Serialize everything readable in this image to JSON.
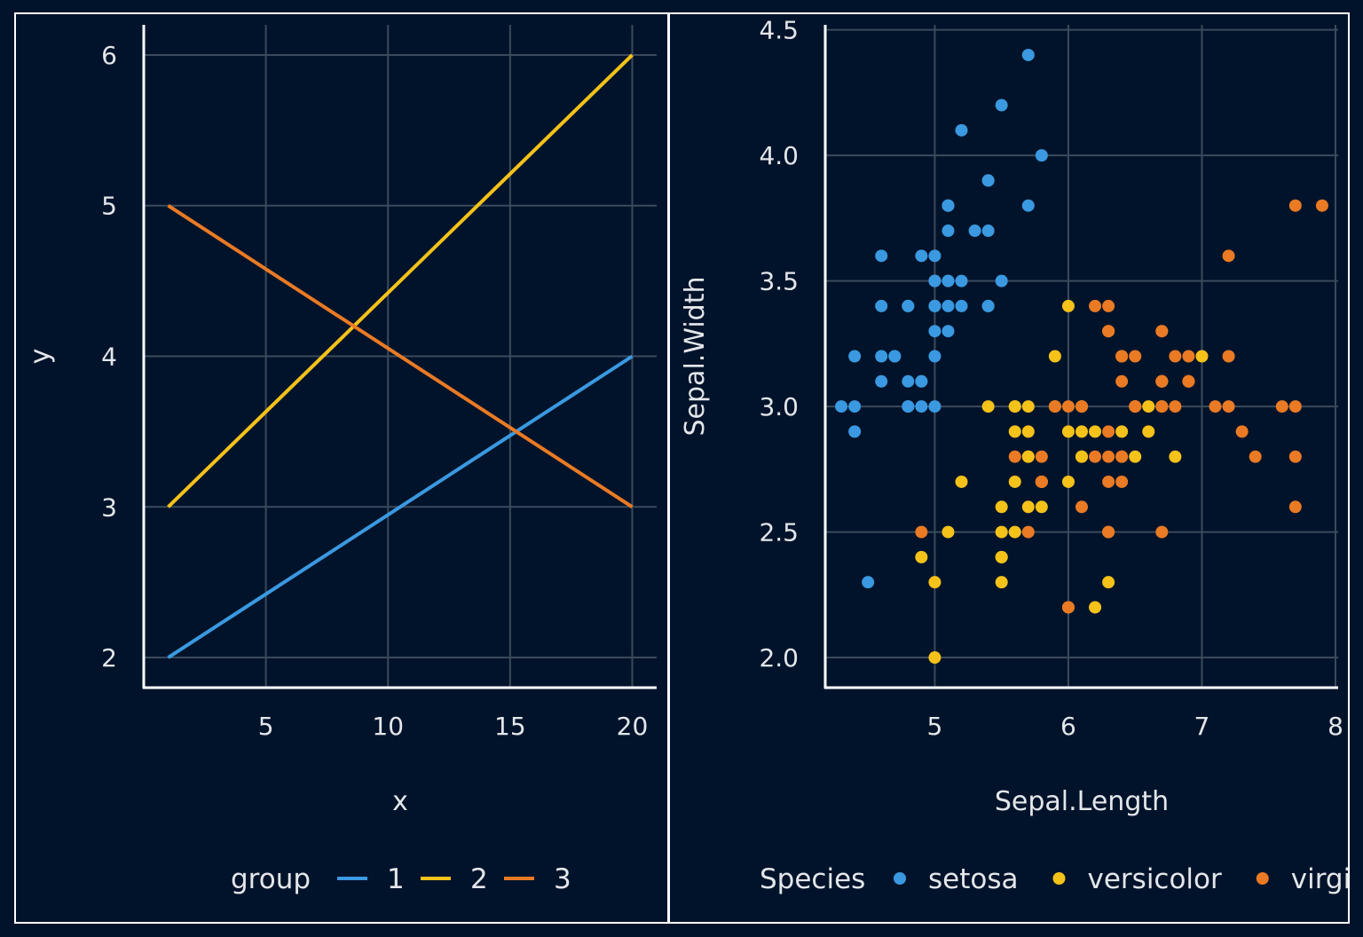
{
  "colors": {
    "background": "#01132a",
    "grid": "#3b4a5c",
    "axis": "#ffffff",
    "text": "#e3e6ea",
    "blue": "#3a99e0",
    "yellow": "#f5c21a",
    "orange": "#ea7a24"
  },
  "chart_data": [
    {
      "type": "line",
      "xlabel": "x",
      "ylabel": "y",
      "xlim": [
        0,
        21
      ],
      "ylim": [
        1.8,
        6.2
      ],
      "xticks": [
        5,
        10,
        15,
        20
      ],
      "yticks": [
        2,
        3,
        4,
        5,
        6
      ],
      "grid": true,
      "legend": {
        "title": "group",
        "position": "bottom"
      },
      "series": [
        {
          "name": "1",
          "color": "#3a99e0",
          "x": [
            1,
            20
          ],
          "y": [
            2,
            4
          ]
        },
        {
          "name": "2",
          "color": "#f5c21a",
          "x": [
            1,
            20
          ],
          "y": [
            3,
            6
          ]
        },
        {
          "name": "3",
          "color": "#ea7a24",
          "x": [
            1,
            20
          ],
          "y": [
            5,
            3
          ]
        }
      ]
    },
    {
      "type": "scatter",
      "xlabel": "Sepal.Length",
      "ylabel": "Sepal.Width",
      "xlim": [
        4.18,
        8.02
      ],
      "ylim": [
        1.88,
        4.52
      ],
      "xticks": [
        5,
        6,
        7,
        8
      ],
      "yticks": [
        "2.0",
        "2.5",
        "3.0",
        "3.5",
        "4.0",
        "4.5"
      ],
      "grid": true,
      "legend": {
        "title": "Species",
        "position": "bottom"
      },
      "series": [
        {
          "name": "setosa",
          "color": "#3a99e0",
          "points": [
            [
              5.1,
              3.5
            ],
            [
              4.9,
              3.0
            ],
            [
              4.7,
              3.2
            ],
            [
              4.6,
              3.1
            ],
            [
              5.0,
              3.6
            ],
            [
              5.4,
              3.9
            ],
            [
              4.6,
              3.4
            ],
            [
              5.0,
              3.4
            ],
            [
              4.4,
              2.9
            ],
            [
              4.9,
              3.1
            ],
            [
              5.4,
              3.7
            ],
            [
              4.8,
              3.4
            ],
            [
              4.8,
              3.0
            ],
            [
              4.3,
              3.0
            ],
            [
              5.8,
              4.0
            ],
            [
              5.7,
              4.4
            ],
            [
              5.4,
              3.9
            ],
            [
              5.1,
              3.5
            ],
            [
              5.7,
              3.8
            ],
            [
              5.1,
              3.8
            ],
            [
              5.4,
              3.4
            ],
            [
              5.1,
              3.7
            ],
            [
              4.6,
              3.6
            ],
            [
              5.1,
              3.3
            ],
            [
              4.8,
              3.4
            ],
            [
              5.0,
              3.0
            ],
            [
              5.0,
              3.4
            ],
            [
              5.2,
              3.5
            ],
            [
              5.2,
              3.4
            ],
            [
              4.7,
              3.2
            ],
            [
              4.8,
              3.1
            ],
            [
              5.4,
              3.4
            ],
            [
              5.2,
              4.1
            ],
            [
              5.5,
              4.2
            ],
            [
              4.9,
              3.1
            ],
            [
              5.0,
              3.2
            ],
            [
              5.5,
              3.5
            ],
            [
              4.9,
              3.6
            ],
            [
              4.4,
              3.0
            ],
            [
              5.1,
              3.4
            ],
            [
              5.0,
              3.5
            ],
            [
              4.5,
              2.3
            ],
            [
              4.4,
              3.2
            ],
            [
              5.0,
              3.5
            ],
            [
              5.1,
              3.8
            ],
            [
              4.8,
              3.0
            ],
            [
              5.1,
              3.8
            ],
            [
              4.6,
              3.2
            ],
            [
              5.3,
              3.7
            ],
            [
              5.0,
              3.3
            ]
          ]
        },
        {
          "name": "versicolor",
          "color": "#f5c21a",
          "points": [
            [
              7.0,
              3.2
            ],
            [
              6.4,
              3.2
            ],
            [
              6.9,
              3.1
            ],
            [
              5.5,
              2.3
            ],
            [
              6.5,
              2.8
            ],
            [
              5.7,
              2.8
            ],
            [
              6.3,
              3.3
            ],
            [
              4.9,
              2.4
            ],
            [
              6.6,
              2.9
            ],
            [
              5.2,
              2.7
            ],
            [
              5.0,
              2.0
            ],
            [
              5.9,
              3.0
            ],
            [
              6.0,
              2.2
            ],
            [
              6.1,
              2.9
            ],
            [
              5.6,
              2.9
            ],
            [
              6.7,
              3.1
            ],
            [
              5.6,
              3.0
            ],
            [
              5.8,
              2.7
            ],
            [
              6.2,
              2.2
            ],
            [
              5.6,
              2.5
            ],
            [
              5.9,
              3.2
            ],
            [
              6.1,
              2.8
            ],
            [
              6.3,
              2.5
            ],
            [
              6.1,
              2.8
            ],
            [
              6.4,
              2.9
            ],
            [
              6.6,
              3.0
            ],
            [
              6.8,
              2.8
            ],
            [
              6.7,
              3.0
            ],
            [
              6.0,
              2.9
            ],
            [
              5.7,
              2.6
            ],
            [
              5.5,
              2.4
            ],
            [
              5.5,
              2.4
            ],
            [
              5.8,
              2.7
            ],
            [
              6.0,
              2.7
            ],
            [
              5.4,
              3.0
            ],
            [
              6.0,
              3.4
            ],
            [
              6.7,
              3.1
            ],
            [
              6.3,
              2.3
            ],
            [
              5.6,
              3.0
            ],
            [
              5.5,
              2.5
            ],
            [
              5.5,
              2.6
            ],
            [
              6.1,
              3.0
            ],
            [
              5.8,
              2.6
            ],
            [
              5.0,
              2.3
            ],
            [
              5.6,
              2.7
            ],
            [
              5.7,
              3.0
            ],
            [
              5.7,
              2.9
            ],
            [
              6.2,
              2.9
            ],
            [
              5.1,
              2.5
            ],
            [
              5.7,
              2.8
            ]
          ]
        },
        {
          "name": "virginica",
          "color": "#ea7a24",
          "points": [
            [
              6.3,
              3.3
            ],
            [
              5.8,
              2.7
            ],
            [
              7.1,
              3.0
            ],
            [
              6.3,
              2.9
            ],
            [
              6.5,
              3.0
            ],
            [
              7.6,
              3.0
            ],
            [
              4.9,
              2.5
            ],
            [
              7.3,
              2.9
            ],
            [
              6.7,
              2.5
            ],
            [
              7.2,
              3.6
            ],
            [
              6.5,
              3.2
            ],
            [
              6.4,
              2.7
            ],
            [
              6.8,
              3.0
            ],
            [
              5.7,
              2.5
            ],
            [
              5.8,
              2.8
            ],
            [
              6.4,
              3.2
            ],
            [
              6.5,
              3.0
            ],
            [
              7.7,
              3.8
            ],
            [
              7.7,
              2.6
            ],
            [
              6.0,
              2.2
            ],
            [
              6.9,
              3.2
            ],
            [
              5.6,
              2.8
            ],
            [
              7.7,
              2.8
            ],
            [
              6.3,
              2.7
            ],
            [
              6.7,
              3.3
            ],
            [
              7.2,
              3.2
            ],
            [
              6.2,
              2.8
            ],
            [
              6.1,
              3.0
            ],
            [
              6.4,
              2.8
            ],
            [
              7.2,
              3.0
            ],
            [
              7.4,
              2.8
            ],
            [
              7.9,
              3.8
            ],
            [
              6.4,
              2.8
            ],
            [
              6.3,
              2.8
            ],
            [
              6.1,
              2.6
            ],
            [
              7.7,
              3.0
            ],
            [
              6.3,
              3.4
            ],
            [
              6.4,
              3.1
            ],
            [
              6.0,
              3.0
            ],
            [
              6.9,
              3.1
            ],
            [
              6.7,
              3.1
            ],
            [
              6.9,
              3.1
            ],
            [
              5.8,
              2.7
            ],
            [
              6.8,
              3.2
            ],
            [
              6.7,
              3.3
            ],
            [
              6.7,
              3.0
            ],
            [
              6.3,
              2.5
            ],
            [
              6.5,
              3.0
            ],
            [
              6.2,
              3.4
            ],
            [
              5.9,
              3.0
            ]
          ]
        }
      ]
    }
  ]
}
